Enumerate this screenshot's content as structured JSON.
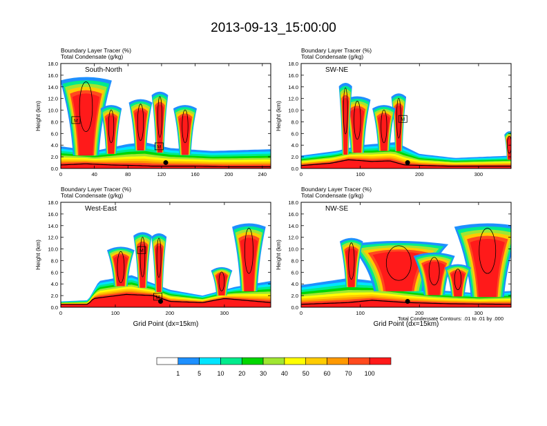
{
  "title": "2013-09-13_15:00:00",
  "footnote": "Total Condensate Contours: .01 to .01 by .000",
  "colorbar": {
    "colors": [
      "#ffffff",
      "#1e90ff",
      "#00e5ff",
      "#00eb8c",
      "#00d700",
      "#a0e632",
      "#ffff00",
      "#ffcc00",
      "#ff9900",
      "#ff4a1e",
      "#ff1a1a"
    ],
    "ticks": [
      "1",
      "5",
      "10",
      "20",
      "30",
      "40",
      "50",
      "60",
      "70",
      "100"
    ]
  },
  "chart_data": [
    {
      "type": "heatmap",
      "title_lines": [
        "Boundary Layer Tracer   (%)",
        "Total Condensate   (g/kg)"
      ],
      "panel_label": "South-North",
      "xlabel": "",
      "ylabel": "Height (km)",
      "xlim": [
        0,
        250
      ],
      "ylim": [
        0,
        18
      ],
      "xticks": [
        0,
        40,
        80,
        120,
        160,
        200,
        240
      ],
      "yticks": [
        "0.0",
        "2.0",
        "4.0",
        "6.0",
        "8.0",
        "10.0",
        "12.0",
        "14.0",
        "16.0",
        "18.0"
      ],
      "terrain": [
        [
          0,
          0.6
        ],
        [
          30,
          0.8
        ],
        [
          60,
          0.6
        ],
        [
          90,
          0.5
        ],
        [
          110,
          0.4
        ],
        [
          125,
          0.4
        ],
        [
          160,
          0.4
        ],
        [
          200,
          0.3
        ],
        [
          250,
          0.3
        ]
      ],
      "marker": {
        "x": 125,
        "y": 1.0
      },
      "markerBoxes": [
        {
          "x": 18,
          "y": 8.3,
          "label": "M"
        },
        {
          "x": 117,
          "y": 3.8,
          "label": "M"
        }
      ],
      "plumes": [
        {
          "x": 118,
          "w": 7,
          "top": 13.3
        },
        {
          "x": 95,
          "w": 10,
          "top": 12.0
        },
        {
          "x": 148,
          "w": 10,
          "top": 11.0
        },
        {
          "x": 30,
          "w": 22,
          "top": 15.8
        },
        {
          "x": 60,
          "w": 9,
          "top": 11.0
        }
      ],
      "boundaryTop": [
        [
          0,
          3.8
        ],
        [
          40,
          3.0
        ],
        [
          80,
          4.2
        ],
        [
          100,
          4.5
        ],
        [
          130,
          3.5
        ],
        [
          180,
          3.0
        ],
        [
          250,
          3.3
        ]
      ]
    },
    {
      "type": "heatmap",
      "title_lines": [
        "Boundary Layer Tracer   (%)",
        "Total Condensate   (g/kg)"
      ],
      "panel_label": "SW-NE",
      "xlabel": "",
      "ylabel": "Height (km)",
      "xlim": [
        0,
        355
      ],
      "ylim": [
        0,
        18
      ],
      "xticks": [
        0,
        100,
        200,
        300
      ],
      "yticks": [
        "0.0",
        "2.0",
        "4.0",
        "6.0",
        "8.0",
        "10.0",
        "12.0",
        "14.0",
        "16.0",
        "18.0"
      ],
      "terrain": [
        [
          0,
          0.5
        ],
        [
          50,
          0.9
        ],
        [
          80,
          1.5
        ],
        [
          120,
          1.2
        ],
        [
          150,
          1.3
        ],
        [
          175,
          0.6
        ],
        [
          250,
          0.4
        ],
        [
          355,
          0.4
        ]
      ],
      "marker": {
        "x": 180,
        "y": 1.0
      },
      "markerBoxes": [
        {
          "x": 172,
          "y": 8.5,
          "label": "M"
        }
      ],
      "plumes": [
        {
          "x": 165,
          "w": 9,
          "top": 13.0
        },
        {
          "x": 95,
          "w": 16,
          "top": 12.5
        },
        {
          "x": 140,
          "w": 14,
          "top": 11.0
        },
        {
          "x": 75,
          "w": 8,
          "top": 14.8
        },
        {
          "x": 352,
          "w": 6,
          "top": 6.5
        }
      ],
      "boundaryTop": [
        [
          0,
          2.2
        ],
        [
          60,
          3.0
        ],
        [
          100,
          4.0
        ],
        [
          160,
          4.5
        ],
        [
          200,
          2.5
        ],
        [
          260,
          1.8
        ],
        [
          355,
          2.2
        ]
      ]
    },
    {
      "type": "heatmap",
      "title_lines": [
        "Boundary Layer Tracer   (%)",
        "Total Condensate   (g/kg)"
      ],
      "panel_label": "West-East",
      "xlabel": "Grid Point (dx=15km)",
      "ylabel": "Height (km)",
      "xlim": [
        0,
        385
      ],
      "ylim": [
        0,
        18
      ],
      "xticks": [
        0,
        100,
        200,
        300
      ],
      "yticks": [
        "0.0",
        "2.0",
        "4.0",
        "6.0",
        "8.0",
        "10.0",
        "12.0",
        "14.0",
        "16.0",
        "18.0"
      ],
      "terrain": [
        [
          0,
          0.5
        ],
        [
          50,
          0.5
        ],
        [
          60,
          1.5
        ],
        [
          120,
          2.2
        ],
        [
          170,
          2.0
        ],
        [
          200,
          1.0
        ],
        [
          260,
          0.8
        ],
        [
          300,
          1.5
        ],
        [
          385,
          0.8
        ]
      ],
      "marker": {
        "x": 183,
        "y": 1.0
      },
      "markerBoxes": [
        {
          "x": 148,
          "y": 9.8,
          "label": "M"
        },
        {
          "x": 178,
          "y": 1.8,
          "label": "M"
        }
      ],
      "plumes": [
        {
          "x": 180,
          "w": 10,
          "top": 12.8
        },
        {
          "x": 150,
          "w": 12,
          "top": 13.0
        },
        {
          "x": 110,
          "w": 18,
          "top": 10.5
        },
        {
          "x": 345,
          "w": 22,
          "top": 14.5
        },
        {
          "x": 295,
          "w": 14,
          "top": 7.0
        }
      ],
      "boundaryTop": [
        [
          0,
          1.0
        ],
        [
          50,
          1.2
        ],
        [
          70,
          4.5
        ],
        [
          130,
          5.5
        ],
        [
          200,
          3.0
        ],
        [
          260,
          2.0
        ],
        [
          320,
          3.5
        ],
        [
          385,
          4.5
        ]
      ]
    },
    {
      "type": "heatmap",
      "title_lines": [
        "Boundary Layer Tracer   (%)",
        "Total Condensate   (g/kg)"
      ],
      "panel_label": "NW-SE",
      "xlabel": "Grid Point (dx=15km)",
      "ylabel": "Height (km)",
      "xlim": [
        0,
        355
      ],
      "ylim": [
        0,
        18
      ],
      "xticks": [
        0,
        100,
        200,
        300
      ],
      "yticks": [
        "0.0",
        "2.0",
        "4.0",
        "6.0",
        "8.0",
        "10.0",
        "12.0",
        "14.0",
        "16.0",
        "18.0"
      ],
      "terrain": [
        [
          0,
          0.5
        ],
        [
          80,
          0.8
        ],
        [
          120,
          1.2
        ],
        [
          180,
          0.8
        ],
        [
          250,
          0.6
        ],
        [
          355,
          0.5
        ]
      ],
      "marker": {
        "x": 180,
        "y": 1.0
      },
      "markerBoxes": [],
      "plumes": [
        {
          "x": 165,
          "w": 60,
          "top": 11.5
        },
        {
          "x": 315,
          "w": 40,
          "top": 14.5
        },
        {
          "x": 225,
          "w": 25,
          "top": 9.5
        },
        {
          "x": 85,
          "w": 14,
          "top": 12.0
        },
        {
          "x": 265,
          "w": 16,
          "top": 7.5
        }
      ],
      "boundaryTop": [
        [
          0,
          3.8
        ],
        [
          80,
          5.0
        ],
        [
          150,
          4.2
        ],
        [
          220,
          3.0
        ],
        [
          300,
          2.4
        ],
        [
          355,
          2.8
        ]
      ]
    }
  ]
}
